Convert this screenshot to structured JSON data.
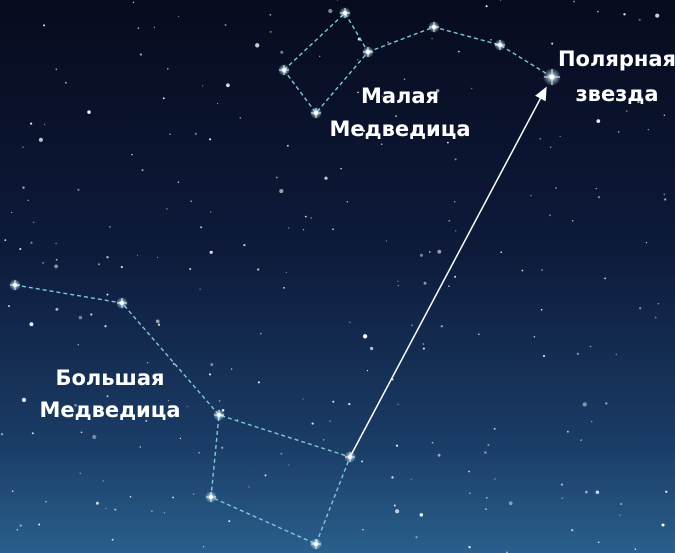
{
  "labels": [
    {
      "lines": [
        "Полярная",
        "звезда"
      ]
    },
    {
      "lines": [
        "Малая",
        "Медведица"
      ]
    },
    {
      "lines": [
        "Большая",
        "Медведица"
      ]
    }
  ]
}
